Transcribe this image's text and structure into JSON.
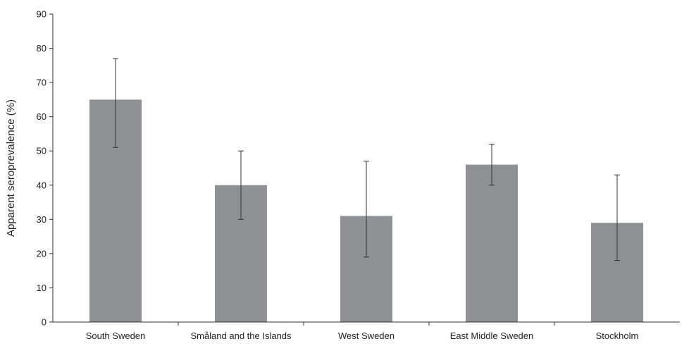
{
  "chart_data": {
    "type": "bar",
    "title": "",
    "xlabel": "",
    "ylabel": "Apparent seroprevalence (%)",
    "ylim": [
      0,
      90
    ],
    "yticks": [
      0,
      10,
      20,
      30,
      40,
      50,
      60,
      70,
      80,
      90
    ],
    "categories": [
      "South Sweden",
      "Småland and the Islands",
      "West Sweden",
      "East Middle Sweden",
      "Stockholm"
    ],
    "values": [
      65,
      40,
      31,
      46,
      29
    ],
    "error_low": [
      51,
      30,
      19,
      40,
      18
    ],
    "error_high": [
      77,
      50,
      47,
      52,
      43
    ],
    "bar_color": "#8e9094",
    "grid": false,
    "legend": "none"
  }
}
